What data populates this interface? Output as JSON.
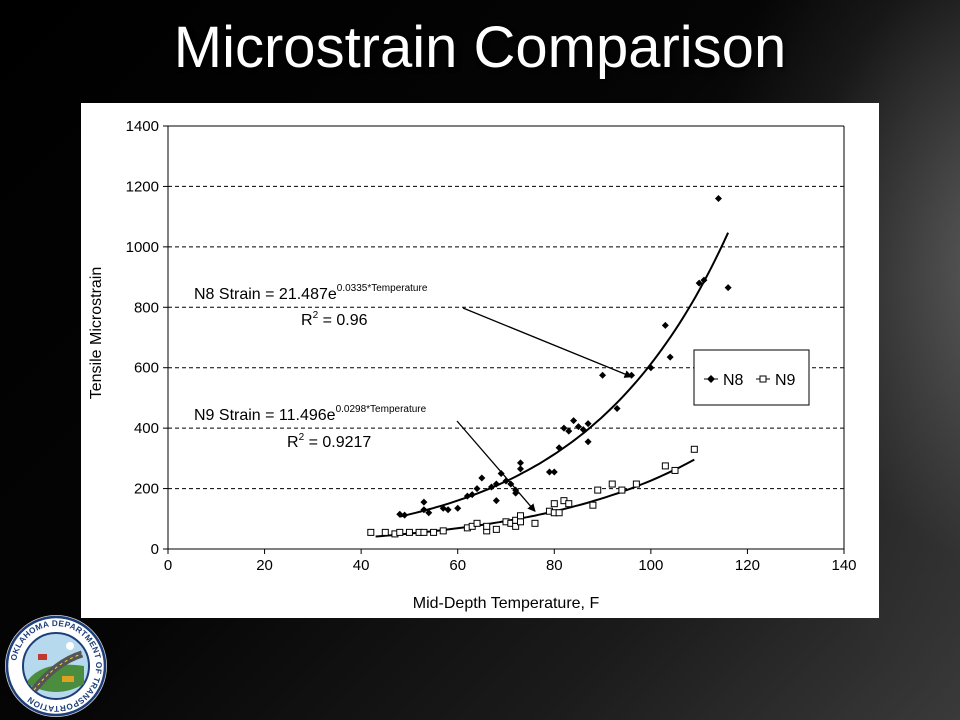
{
  "slide": {
    "title": "Microstrain Comparison"
  },
  "logo": {
    "ring_text": "OKLAHOMA DEPARTMENT OF TRANSPORTATION"
  },
  "chart_data": {
    "type": "scatter",
    "xlabel": "Mid-Depth Temperature, F",
    "ylabel": "Tensile Microstrain",
    "xlim": [
      0,
      140
    ],
    "ylim": [
      0,
      1400
    ],
    "xticks": [
      0,
      20,
      40,
      60,
      80,
      100,
      120,
      140
    ],
    "yticks": [
      0,
      200,
      400,
      600,
      800,
      1000,
      1200,
      1400
    ],
    "grid": "horizontal dashed",
    "legend_position": "right",
    "series": [
      {
        "name": "N8",
        "marker": "filled-diamond",
        "color": "#000000",
        "points": [
          [
            48,
            115
          ],
          [
            49,
            112
          ],
          [
            53,
            155
          ],
          [
            53,
            130
          ],
          [
            54,
            120
          ],
          [
            57,
            135
          ],
          [
            58,
            130
          ],
          [
            60,
            135
          ],
          [
            62,
            175
          ],
          [
            63,
            180
          ],
          [
            64,
            200
          ],
          [
            65,
            235
          ],
          [
            67,
            205
          ],
          [
            68,
            160
          ],
          [
            68,
            215
          ],
          [
            69,
            250
          ],
          [
            70,
            225
          ],
          [
            71,
            215
          ],
          [
            72,
            185
          ],
          [
            72,
            195
          ],
          [
            73,
            265
          ],
          [
            73,
            285
          ],
          [
            79,
            255
          ],
          [
            80,
            255
          ],
          [
            81,
            335
          ],
          [
            82,
            400
          ],
          [
            83,
            390
          ],
          [
            84,
            425
          ],
          [
            85,
            405
          ],
          [
            86,
            395
          ],
          [
            87,
            415
          ],
          [
            87,
            355
          ],
          [
            90,
            575
          ],
          [
            93,
            465
          ],
          [
            96,
            575
          ],
          [
            100,
            600
          ],
          [
            103,
            740
          ],
          [
            104,
            635
          ],
          [
            110,
            880
          ],
          [
            111,
            890
          ],
          [
            114,
            1160
          ],
          [
            116,
            865
          ]
        ],
        "trendline": {
          "a": 21.487,
          "b": 0.0335,
          "from": 48,
          "to": 116
        }
      },
      {
        "name": "N9",
        "marker": "hollow-square",
        "color": "#000000",
        "points": [
          [
            42,
            55
          ],
          [
            45,
            55
          ],
          [
            47,
            50
          ],
          [
            48,
            55
          ],
          [
            50,
            55
          ],
          [
            52,
            55
          ],
          [
            53,
            55
          ],
          [
            55,
            55
          ],
          [
            57,
            60
          ],
          [
            62,
            70
          ],
          [
            63,
            75
          ],
          [
            64,
            85
          ],
          [
            66,
            60
          ],
          [
            66,
            75
          ],
          [
            68,
            65
          ],
          [
            70,
            90
          ],
          [
            71,
            85
          ],
          [
            72,
            75
          ],
          [
            72,
            95
          ],
          [
            73,
            90
          ],
          [
            73,
            110
          ],
          [
            76,
            85
          ],
          [
            79,
            125
          ],
          [
            80,
            120
          ],
          [
            80,
            150
          ],
          [
            81,
            120
          ],
          [
            82,
            160
          ],
          [
            83,
            150
          ],
          [
            88,
            145
          ],
          [
            89,
            195
          ],
          [
            92,
            215
          ],
          [
            94,
            195
          ],
          [
            97,
            215
          ],
          [
            103,
            275
          ],
          [
            105,
            260
          ],
          [
            109,
            330
          ]
        ],
        "trendline": {
          "a": 11.496,
          "b": 0.0298,
          "from": 43,
          "to": 109
        }
      }
    ],
    "annotations": [
      {
        "series": "N8",
        "equation_prefix": "N8 Strain = 21.487e",
        "equation_exponent": "0.0335*Temperature",
        "r2_prefix": "R",
        "r2_suffix": " = 0.96",
        "arrow_target": [
          96,
          570
        ]
      },
      {
        "series": "N9",
        "equation_prefix": "N9 Strain = 11.496e",
        "equation_exponent": "0.0298*Temperature",
        "r2_prefix": "R",
        "r2_suffix": " = 0.9217",
        "arrow_target": [
          76,
          125
        ]
      }
    ]
  }
}
